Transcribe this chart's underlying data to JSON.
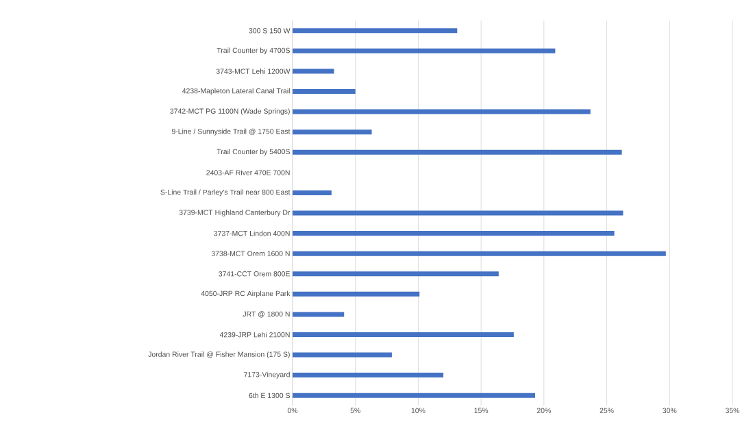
{
  "chart_data": {
    "type": "bar",
    "orientation": "horizontal",
    "color": "#4472c4",
    "categories": [
      "300 S 150 W",
      "Trail Counter by 4700S",
      "3743-MCT Lehi 1200W",
      "4238-Mapleton Lateral Canal Trail",
      "3742-MCT PG 1100N (Wade Springs)",
      "9-Line / Sunnyside Trail @ 1750 East",
      "Trail Counter by 5400S",
      "2403-AF River 470E 700N",
      "S-Line Trail / Parley's Trail near 800 East",
      "3739-MCT Highland Canterbury Dr",
      "3737-MCT Lindon 400N",
      "3738-MCT Orem 1600 N",
      "3741-CCT Orem 800E",
      "4050-JRP RC Airplane Park",
      "JRT @ 1800 N",
      "4239-JRP Lehi 2100N",
      "Jordan River Trail @ Fisher Mansion (175 S)",
      "7173-Vineyard",
      "6th E 1300 S"
    ],
    "values": [
      13.1,
      20.9,
      3.3,
      5.0,
      23.7,
      6.3,
      26.2,
      0,
      3.1,
      26.3,
      25.6,
      29.7,
      16.4,
      10.1,
      4.1,
      17.6,
      7.9,
      12.0,
      19.3
    ],
    "xlim": [
      0,
      35
    ],
    "xticks": [
      {
        "value": 0,
        "label": "0%"
      },
      {
        "value": 5,
        "label": "5%"
      },
      {
        "value": 10,
        "label": "10%"
      },
      {
        "value": 15,
        "label": "15%"
      },
      {
        "value": 20,
        "label": "20%"
      },
      {
        "value": 25,
        "label": "25%"
      },
      {
        "value": 30,
        "label": "30%"
      },
      {
        "value": 35,
        "label": "35%"
      }
    ],
    "grid": "x"
  }
}
